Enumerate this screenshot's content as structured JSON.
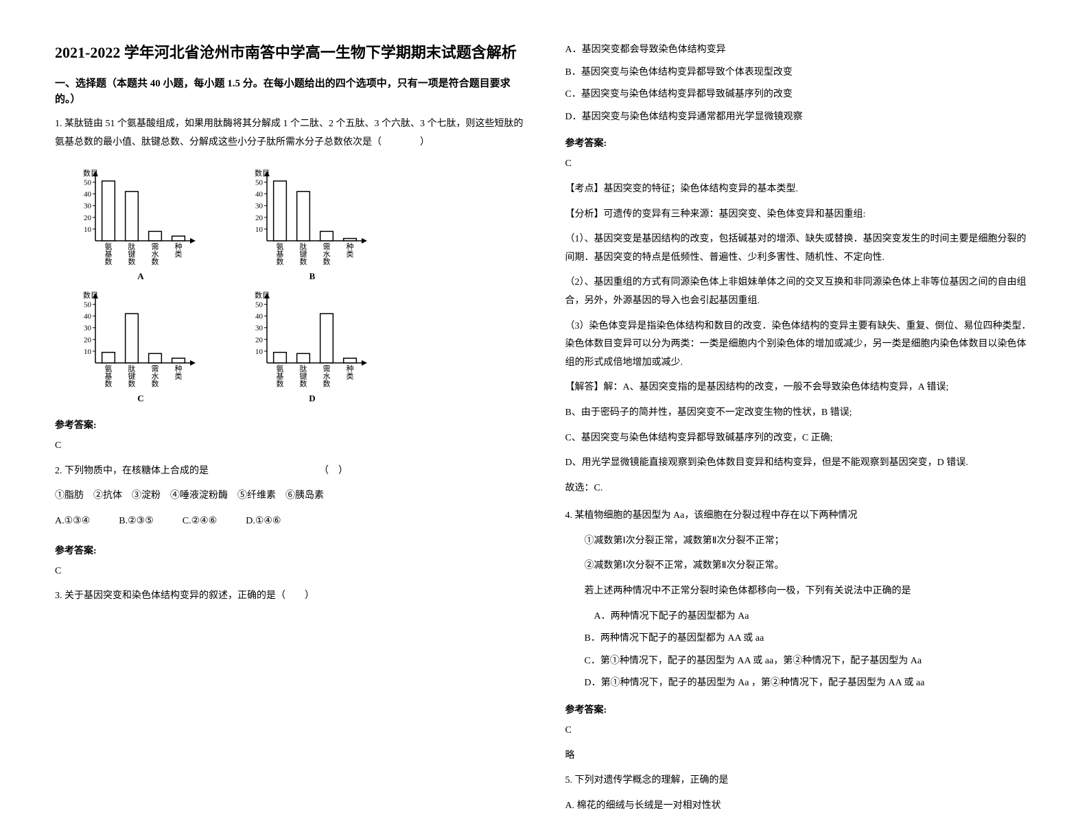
{
  "title": "2021-2022 学年河北省沧州市南答中学高一生物下学期期末试题含解析",
  "section1_header": "一、选择题（本题共 40 小题，每小题 1.5 分。在每小题给出的四个选项中，只有一项是符合题目要求的。）",
  "q1": {
    "text": "1. 某肽链由 51 个氨基酸组成，如果用肽酶将其分解成 1 个二肽、2 个五肽、3 个六肽、3 个七肽，则这些短肽的氨基总数的最小值、肽键总数、分解成这些小分子肽所需水分子总数依次是（　　　　）",
    "answer_label": "参考答案:",
    "answer": "C"
  },
  "q2": {
    "text": "2. 下列物质中，在核糖体上合成的是　　　　　　　　　　　　（　）",
    "items": "①脂肪　②抗体　③淀粉　④唾液淀粉酶　⑤纤维素　⑥胰岛素",
    "options": "A.①③④　　　B.②③⑤　　　C.②④⑥　　　D.①④⑥",
    "answer_label": "参考答案:",
    "answer": "C"
  },
  "q3": {
    "text": "3. 关于基因突变和染色体结构变异的叙述，正确的是（　　）",
    "optA": "A．基因突变都会导致染色体结构变异",
    "optB": "B．基因突变与染色体结构变异都导致个体表现型改变",
    "optC": "C．基因突变与染色体结构变异都导致碱基序列的改变",
    "optD": "D．基因突变与染色体结构变异通常都用光学显微镜观察",
    "answer_label": "参考答案:",
    "answer": "C",
    "exp1": "【考点】基因突变的特征；染色体结构变异的基本类型.",
    "exp2": "【分析】可遗传的变异有三种来源：基因突变、染色体变异和基因重组:",
    "exp3": "（1）、基因突变是基因结构的改变，包括碱基对的增添、缺失或替换．基因突变发生的时间主要是细胞分裂的间期．基因突变的特点是低频性、普遍性、少利多害性、随机性、不定向性.",
    "exp4": "（2）、基因重组的方式有同源染色体上非姐妹单体之间的交叉互换和非同源染色体上非等位基因之间的自由组合，另外，外源基因的导入也会引起基因重组.",
    "exp5": "（3）染色体变异是指染色体结构和数目的改变．染色体结构的变异主要有缺失、重复、倒位、易位四种类型．染色体数目变异可以分为两类：一类是细胞内个别染色体的增加或减少，另一类是细胞内染色体数目以染色体组的形式成倍地增加或减少.",
    "exp6": "【解答】解：A、基因突变指的是基因结构的改变，一般不会导致染色体结构变异，A 错误;",
    "exp7": "B、由于密码子的简并性，基因突变不一定改变生物的性状，B 错误;",
    "exp8": "C、基因突变与染色体结构变异都导致碱基序列的改变，C 正确;",
    "exp9": "D、用光学显微镜能直接观察到染色体数目变异和结构变异，但是不能观察到基因突变，D 错误.",
    "exp10": "故选：C."
  },
  "q4": {
    "text": "4. 某植物细胞的基因型为 Aa，该细胞在分裂过程中存在以下两种情况",
    "line1": "①减数第Ⅰ次分裂正常，减数第Ⅱ次分裂不正常；",
    "line2": "②减数第Ⅰ次分裂不正常，减数第Ⅱ次分裂正常。",
    "line3": "若上述两种情况中不正常分裂时染色体都移向一极，下列有关说法中正确的是",
    "optA": "A．两种情况下配子的基因型都为 Aa",
    "optB": "B．两种情况下配子的基因型都为 AA 或 aa",
    "optC": "C．第①种情况下，配子的基因型为 AA 或 aa，第②种情况下，配子基因型为 Aa",
    "optD": "D．第①种情况下，配子的基因型为 Aa ，第②种情况下，配子基因型为 AA 或 aa",
    "answer_label": "参考答案:",
    "answer": "C",
    "note": "略"
  },
  "q5": {
    "text": "5. 下列对遗传学概念的理解，正确的是",
    "optA": "A. 棉花的细绒与长绒是一对相对性状"
  },
  "chart": {
    "y_label": "数目",
    "x_labels": [
      "氨基数",
      "肽键数",
      "需水数",
      "种类"
    ],
    "y_ticks": [
      10,
      20,
      30,
      40,
      50
    ],
    "panels": {
      "A": [
        51,
        42,
        8,
        4
      ],
      "B": [
        51,
        42,
        8,
        2
      ],
      "C": [
        9,
        42,
        8,
        4
      ],
      "D": [
        9,
        8,
        42,
        4
      ]
    },
    "bar_color": "#ffffff",
    "bar_stroke": "#000000",
    "axis_color": "#000000",
    "font_size": 11,
    "y_max": 55
  }
}
